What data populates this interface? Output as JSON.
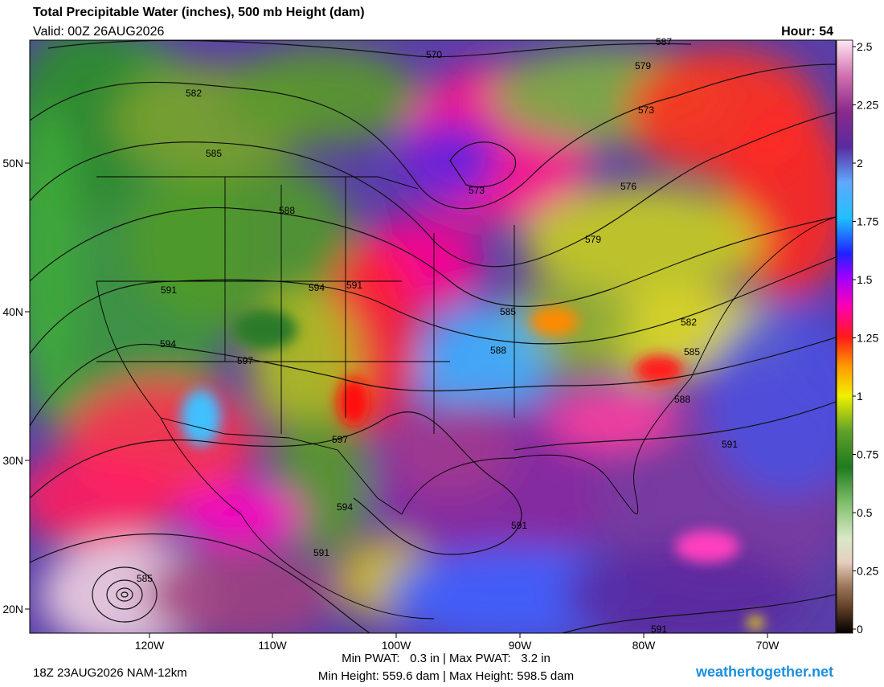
{
  "header": {
    "title": "Total Precipitable Water (inches), 500 mb Height (dam)",
    "valid": "Valid: 00Z 26AUG2026",
    "hour": "Hour: 54"
  },
  "colorbar": {
    "lim": [
      0,
      2.5
    ],
    "ticks": [
      0,
      0.25,
      0.5,
      0.75,
      1,
      1.25,
      1.5,
      1.75,
      2,
      2.25,
      2.5
    ]
  },
  "map": {
    "lon_labels": [
      "120W",
      "110W",
      "100W",
      "90W",
      "80W",
      "70W"
    ],
    "lat_labels": [
      "50N",
      "40N",
      "30N",
      "20N"
    ],
    "contour_labels": [
      570,
      587,
      579,
      582,
      585,
      588,
      573,
      576,
      573,
      579,
      591,
      594,
      591,
      594,
      597,
      585,
      588,
      582,
      585,
      588,
      597,
      594,
      591,
      591,
      585,
      591,
      591
    ]
  },
  "footer": {
    "run": "18Z 23AUG2026 NAM-12km",
    "pwat": "Min PWAT:   0.3 in | Max PWAT:   3.2 in",
    "height": "Min Height: 559.6 dam | Max Height: 598.5 dam",
    "site": "weathertogether.net"
  }
}
